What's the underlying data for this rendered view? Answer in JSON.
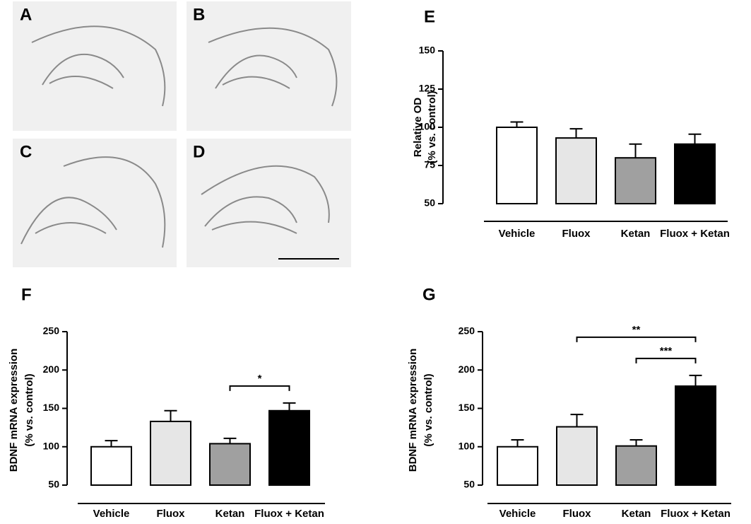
{
  "panels": {
    "labels": [
      "A",
      "B",
      "C",
      "D"
    ]
  },
  "chart_data": [
    {
      "type": "bar",
      "label": "E",
      "y_label": [
        "Relative OD",
        "(% vs. control)"
      ],
      "categories": [
        "Vehicle",
        "Fluox",
        "Ketan",
        "Fluox + Ketan"
      ],
      "values": [
        100,
        93,
        80,
        89
      ],
      "errors": [
        3.5,
        6,
        9,
        6.5
      ],
      "colors": [
        "#ffffff",
        "#e6e6e6",
        "#a0a0a0",
        "#000000"
      ],
      "ylim": [
        50,
        150
      ],
      "yticks": [
        50,
        75,
        100,
        125,
        150
      ],
      "annotations": []
    },
    {
      "type": "bar",
      "label": "F",
      "y_label": [
        "BDNF mRNA expression",
        "(% vs. control)"
      ],
      "categories": [
        "Vehicle",
        "Fluox",
        "Ketan",
        "Fluox + Ketan"
      ],
      "values": [
        100,
        133,
        104,
        147
      ],
      "errors": [
        8,
        14,
        7,
        10
      ],
      "colors": [
        "#ffffff",
        "#e6e6e6",
        "#a0a0a0",
        "#000000"
      ],
      "ylim": [
        50,
        250
      ],
      "yticks": [
        50,
        100,
        150,
        200,
        250
      ],
      "annotations": [
        {
          "text": "*",
          "between": [
            2,
            3
          ]
        }
      ]
    },
    {
      "type": "bar",
      "label": "G",
      "y_label": [
        "BDNF mRNA expression",
        "(% vs. control)"
      ],
      "categories": [
        "Vehicle",
        "Fluox",
        "Ketan",
        "Fluox + Ketan"
      ],
      "values": [
        100,
        126,
        101,
        179
      ],
      "errors": [
        9,
        16,
        8,
        14
      ],
      "colors": [
        "#ffffff",
        "#e6e6e6",
        "#a0a0a0",
        "#000000"
      ],
      "ylim": [
        50,
        250
      ],
      "yticks": [
        50,
        100,
        150,
        200,
        250
      ],
      "annotations": [
        {
          "text": "***",
          "between": [
            2,
            3
          ]
        },
        {
          "text": "**",
          "between": [
            1,
            3
          ]
        }
      ]
    }
  ]
}
